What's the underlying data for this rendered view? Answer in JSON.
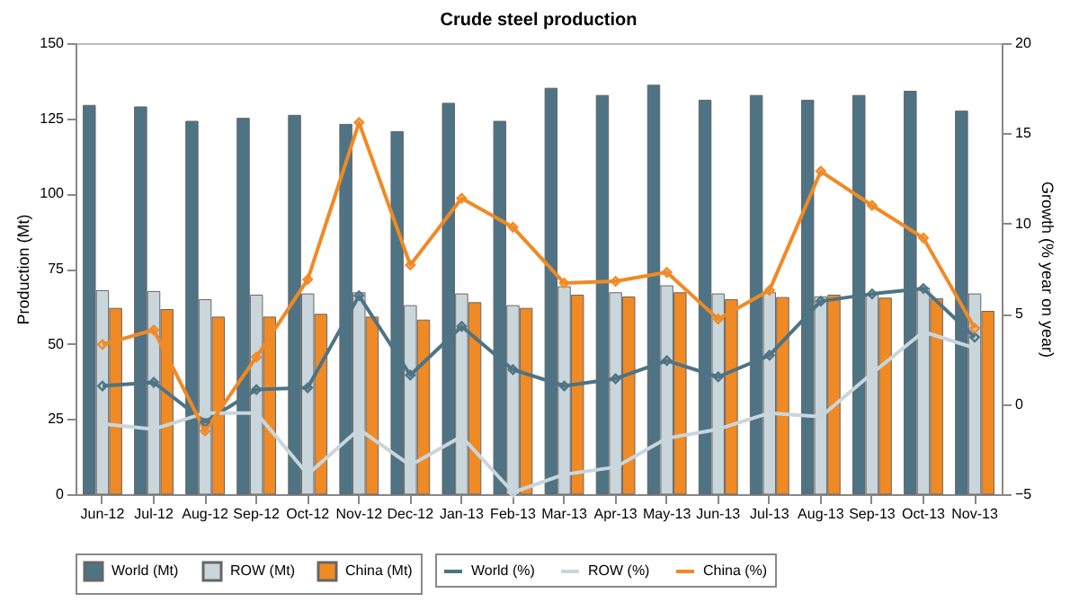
{
  "chart_data": {
    "type": "bar",
    "title": "Crude steel production",
    "ylabel": "Production (Mt)",
    "y2label": "Growth (% year on year)",
    "categories": [
      "Jun-12",
      "Jul-12",
      "Aug-12",
      "Sep-12",
      "Oct-12",
      "Nov-12",
      "Dec-12",
      "Jan-13",
      "Feb-13",
      "Mar-13",
      "Apr-13",
      "May-13",
      "Jun-13",
      "Jul-13",
      "Aug-13",
      "Sep-13",
      "Oct-13",
      "Nov-13"
    ],
    "series": [
      {
        "name": "World (Mt)",
        "color": "#4e7384",
        "values": [
          129.3,
          128.8,
          124,
          125,
          126,
          123,
          120.6,
          130,
          124,
          135,
          132.6,
          136,
          131,
          132.6,
          131,
          132.6,
          134,
          127.4
        ]
      },
      {
        "name": "ROW (Mt)",
        "color": "#c9d6dc",
        "values": [
          67.7,
          67.4,
          64.7,
          66.2,
          66.6,
          67,
          62.7,
          66.6,
          62.7,
          69,
          67,
          69.3,
          66.6,
          67,
          65.6,
          66.6,
          68.5,
          66.6
        ]
      },
      {
        "name": "China (Mt)",
        "color": "#f08a24",
        "values": [
          61.8,
          61.4,
          58.9,
          58.9,
          59.8,
          58.9,
          57.9,
          63.7,
          61.8,
          66.2,
          65.6,
          67,
          64.7,
          65.4,
          66.2,
          65.2,
          65,
          60.8
        ]
      },
      {
        "name": "World (%)",
        "type": "line",
        "axis": "y2",
        "color": "#4e7384",
        "values": [
          1.0,
          1.2,
          -1.0,
          0.8,
          0.9,
          6.0,
          1.6,
          4.3,
          1.9,
          1.0,
          1.4,
          2.4,
          1.5,
          2.7,
          5.7,
          6.1,
          6.4,
          3.7
        ]
      },
      {
        "name": "ROW (%)",
        "type": "line",
        "axis": "y2",
        "color": "#c9d6dc",
        "values": [
          -1.1,
          -1.4,
          -0.5,
          -0.5,
          -3.9,
          -1.4,
          -3.4,
          -1.8,
          -4.9,
          -3.9,
          -3.5,
          -1.9,
          -1.4,
          -0.5,
          -0.7,
          1.7,
          4.0,
          3.1
        ]
      },
      {
        "name": "China (%)",
        "type": "line",
        "axis": "y2",
        "color": "#f08a24",
        "values": [
          3.3,
          4.1,
          -1.5,
          2.6,
          6.9,
          15.6,
          7.7,
          11.4,
          9.8,
          6.7,
          6.8,
          7.3,
          4.7,
          6.3,
          12.9,
          11.0,
          9.2,
          4.2
        ]
      }
    ],
    "ylim": [
      0,
      150
    ],
    "yticks": [
      0,
      25,
      50,
      75,
      100,
      125,
      150
    ],
    "y2lim": [
      -5,
      20
    ],
    "y2ticks": [
      -5,
      0,
      5,
      10,
      15,
      20
    ],
    "legend": "bottom",
    "marker": "diamond",
    "grid": false
  }
}
